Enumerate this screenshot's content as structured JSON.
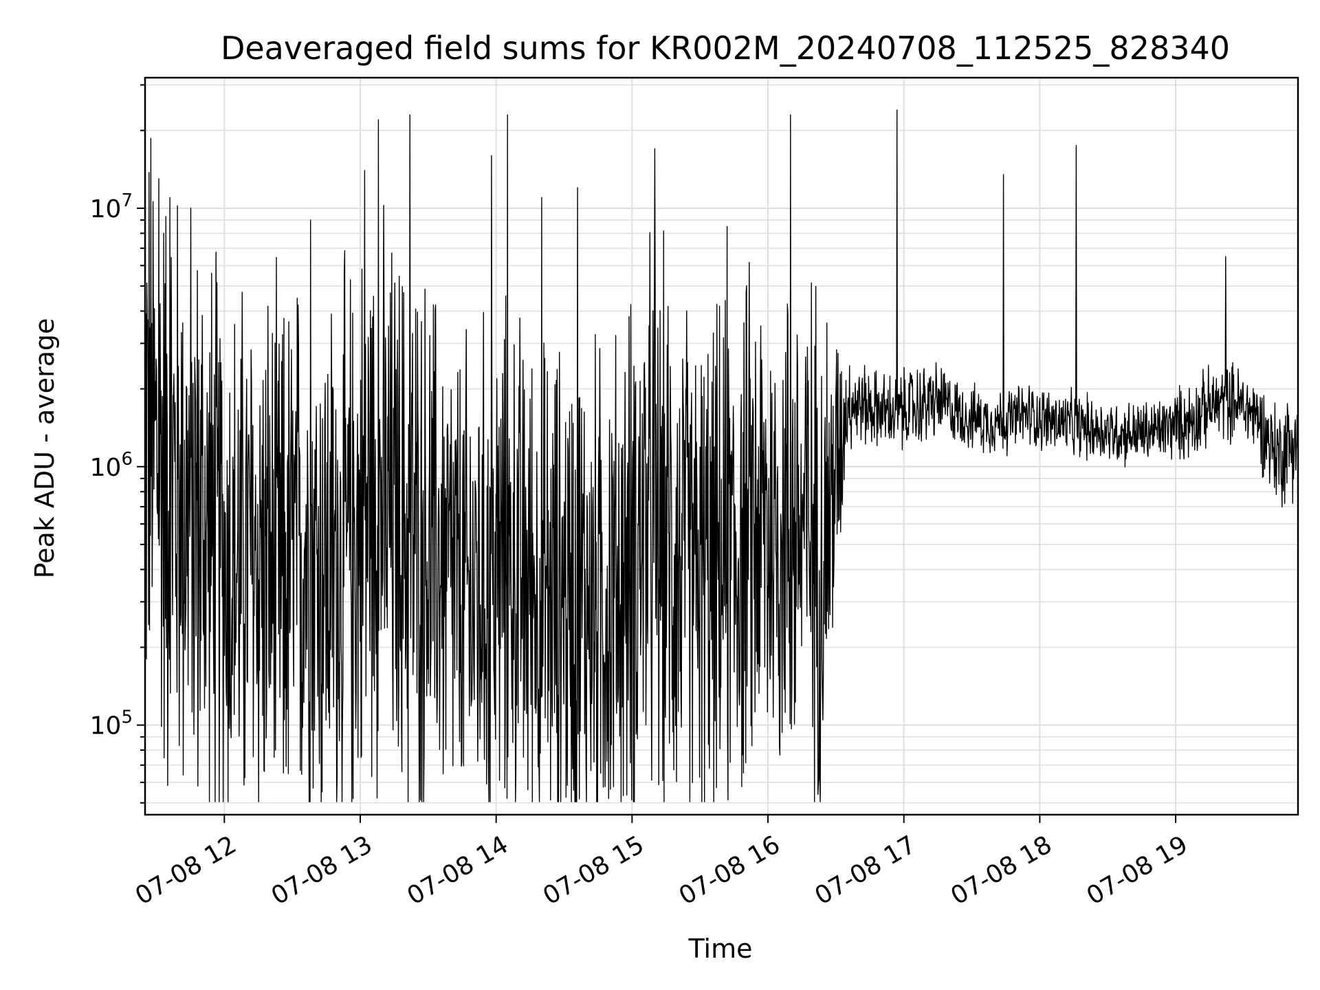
{
  "chart_data": {
    "type": "line",
    "title": "Deaveraged field sums for KR002M_20240708_112525_828340",
    "xlabel": "Time",
    "ylabel": "Peak ADU - average",
    "yscale": "log",
    "xlim": [
      "2024-07-08 11:25",
      "2024-07-08 19:54"
    ],
    "ylim": [
      45000,
      32000000
    ],
    "x_ticks": [
      {
        "t": "2024-07-08 12:00",
        "label": "07-08 12"
      },
      {
        "t": "2024-07-08 13:00",
        "label": "07-08 13"
      },
      {
        "t": "2024-07-08 14:00",
        "label": "07-08 14"
      },
      {
        "t": "2024-07-08 15:00",
        "label": "07-08 15"
      },
      {
        "t": "2024-07-08 16:00",
        "label": "07-08 16"
      },
      {
        "t": "2024-07-08 17:00",
        "label": "07-08 17"
      },
      {
        "t": "2024-07-08 18:00",
        "label": "07-08 18"
      },
      {
        "t": "2024-07-08 19:00",
        "label": "07-08 19"
      }
    ],
    "y_ticks": [
      {
        "value": 100000,
        "base": "10",
        "exp": "5"
      },
      {
        "value": 1000000,
        "base": "10",
        "exp": "6"
      },
      {
        "value": 10000000,
        "base": "10",
        "exp": "7"
      }
    ],
    "grid": true,
    "line_color": "#000000",
    "grid_color": "#e0e0e0",
    "series": [
      {
        "x": [
          "2024-07-08 11:25",
          "2024-07-08 11:35",
          "2024-07-08 11:45",
          "2024-07-08 11:55",
          "2024-07-08 12:05",
          "2024-07-08 12:15",
          "2024-07-08 12:25",
          "2024-07-08 12:35",
          "2024-07-08 12:45",
          "2024-07-08 12:55",
          "2024-07-08 13:05",
          "2024-07-08 13:15",
          "2024-07-08 13:25",
          "2024-07-08 13:35",
          "2024-07-08 13:45",
          "2024-07-08 13:55",
          "2024-07-08 14:05",
          "2024-07-08 14:15",
          "2024-07-08 14:25",
          "2024-07-08 14:35",
          "2024-07-08 14:45",
          "2024-07-08 14:55",
          "2024-07-08 15:05",
          "2024-07-08 15:15",
          "2024-07-08 15:25",
          "2024-07-08 15:35",
          "2024-07-08 15:45",
          "2024-07-08 15:55",
          "2024-07-08 16:05",
          "2024-07-08 16:15",
          "2024-07-08 16:25",
          "2024-07-08 16:35",
          "2024-07-08 16:45",
          "2024-07-08 16:55",
          "2024-07-08 17:05",
          "2024-07-08 17:15",
          "2024-07-08 17:25",
          "2024-07-08 17:35",
          "2024-07-08 17:45",
          "2024-07-08 17:55",
          "2024-07-08 18:05",
          "2024-07-08 18:15",
          "2024-07-08 18:25",
          "2024-07-08 18:35",
          "2024-07-08 18:45",
          "2024-07-08 18:55",
          "2024-07-08 19:05",
          "2024-07-08 19:15",
          "2024-07-08 19:25",
          "2024-07-08 19:35",
          "2024-07-08 19:45",
          "2024-07-08 19:54"
        ],
        "y": [
          1500000,
          900000,
          700000,
          500000,
          400000,
          450000,
          350000,
          500000,
          400000,
          450000,
          800000,
          600000,
          500000,
          450000,
          300000,
          350000,
          400000,
          350000,
          300000,
          320000,
          300000,
          330000,
          600000,
          500000,
          400000,
          350000,
          450000,
          600000,
          550000,
          600000,
          500000,
          1800000,
          1700000,
          1600000,
          1700000,
          1800000,
          1600000,
          1500000,
          1500000,
          1600000,
          1500000,
          1450000,
          1400000,
          1350000,
          1350000,
          1400000,
          1500000,
          1700000,
          1800000,
          1600000,
          1100000,
          1300000
        ]
      }
    ],
    "envelope_amplitude_decades": [
      1.5,
      1.5,
      1.4,
      1.4,
      1.3,
      1.3,
      1.3,
      1.3,
      1.3,
      1.3,
      1.3,
      1.3,
      1.3,
      1.2,
      1.2,
      1.2,
      1.2,
      1.2,
      1.2,
      1.2,
      1.2,
      1.2,
      1.3,
      1.3,
      1.2,
      1.2,
      1.2,
      1.2,
      1.2,
      1.2,
      1.2,
      0.22,
      0.18,
      0.18,
      0.2,
      0.18,
      0.15,
      0.15,
      0.15,
      0.15,
      0.15,
      0.15,
      0.15,
      0.15,
      0.15,
      0.15,
      0.18,
      0.18,
      0.18,
      0.18,
      0.25,
      0.25
    ],
    "spikes": [
      {
        "t": "2024-07-08 11:31",
        "y": 13000000
      },
      {
        "t": "2024-07-08 11:36",
        "y": 11000000
      },
      {
        "t": "2024-07-08 12:38",
        "y": 9000000
      },
      {
        "t": "2024-07-08 13:02",
        "y": 14000000
      },
      {
        "t": "2024-07-08 13:08",
        "y": 22000000
      },
      {
        "t": "2024-07-08 13:22",
        "y": 23000000
      },
      {
        "t": "2024-07-08 13:58",
        "y": 16000000
      },
      {
        "t": "2024-07-08 14:05",
        "y": 23000000
      },
      {
        "t": "2024-07-08 14:20",
        "y": 11000000
      },
      {
        "t": "2024-07-08 14:36",
        "y": 12000000
      },
      {
        "t": "2024-07-08 15:10",
        "y": 17000000
      },
      {
        "t": "2024-07-08 15:42",
        "y": 8500000
      },
      {
        "t": "2024-07-08 16:10",
        "y": 23000000
      },
      {
        "t": "2024-07-08 16:57",
        "y": 24000000
      },
      {
        "t": "2024-07-08 17:44",
        "y": 13500000
      },
      {
        "t": "2024-07-08 18:16",
        "y": 17500000
      },
      {
        "t": "2024-07-08 19:22",
        "y": 6500000
      }
    ]
  }
}
